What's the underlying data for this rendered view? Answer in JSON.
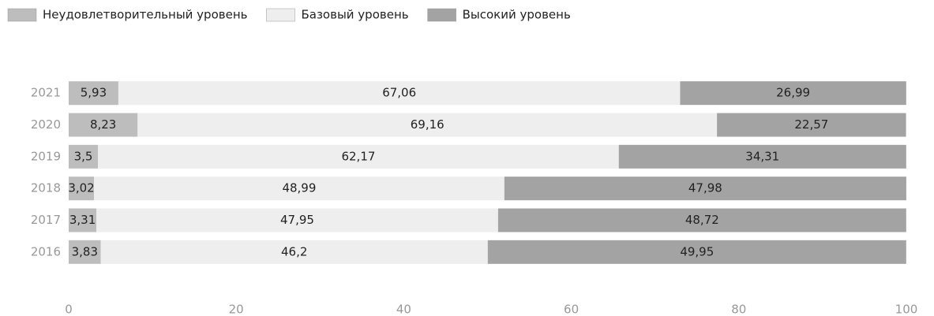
{
  "chart_data": {
    "type": "stacked_barh",
    "categories": [
      "2021",
      "2020",
      "2019",
      "2018",
      "2017",
      "2016"
    ],
    "series": [
      {
        "name": "Неудовлетворительный уровень",
        "color": "#bdbdbd",
        "values": [
          5.93,
          8.23,
          3.5,
          3.02,
          3.31,
          3.83
        ],
        "value_labels": [
          "5,93",
          "8,23",
          "3,5",
          "3,02",
          "3,31",
          "3,83"
        ]
      },
      {
        "name": "Базовый уровень",
        "color": "#eeeeee",
        "values": [
          67.06,
          69.16,
          62.17,
          48.99,
          47.95,
          46.2
        ],
        "value_labels": [
          "67,06",
          "69,16",
          "62,17",
          "48,99",
          "47,95",
          "46,2"
        ]
      },
      {
        "name": "Высокий уровень",
        "color": "#a3a3a3",
        "values": [
          26.99,
          22.57,
          34.31,
          47.98,
          48.72,
          49.95
        ],
        "value_labels": [
          "26,99",
          "22,57",
          "34,31",
          "47,98",
          "48,72",
          "49,95"
        ]
      }
    ],
    "xlim": [
      0,
      100
    ],
    "xticks": [
      0,
      20,
      40,
      60,
      80,
      100
    ],
    "grid": false,
    "legend": "top-left"
  }
}
